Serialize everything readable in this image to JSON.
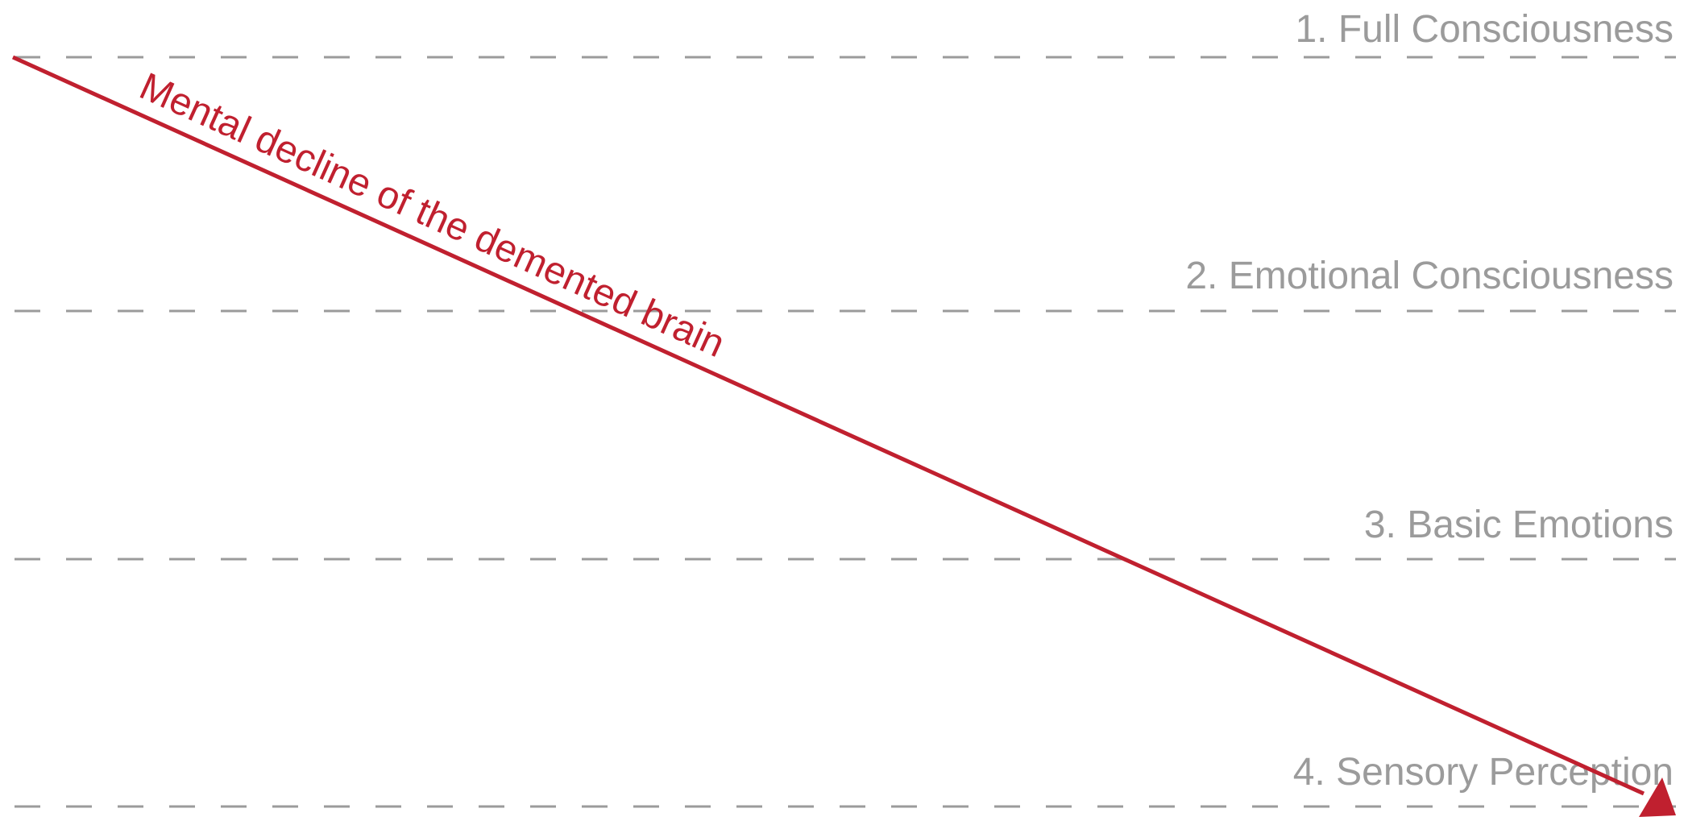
{
  "colors": {
    "guide": "#9b9b9b",
    "arrow": "#c0202f",
    "background": "#ffffff"
  },
  "levels": [
    {
      "label": "1. Full Consciousness"
    },
    {
      "label": "2. Emotional Consciousness"
    },
    {
      "label": "3. Basic Emotions"
    },
    {
      "label": "4. Sensory Perception"
    }
  ],
  "arrow": {
    "label": "Mental decline of the demented brain"
  }
}
